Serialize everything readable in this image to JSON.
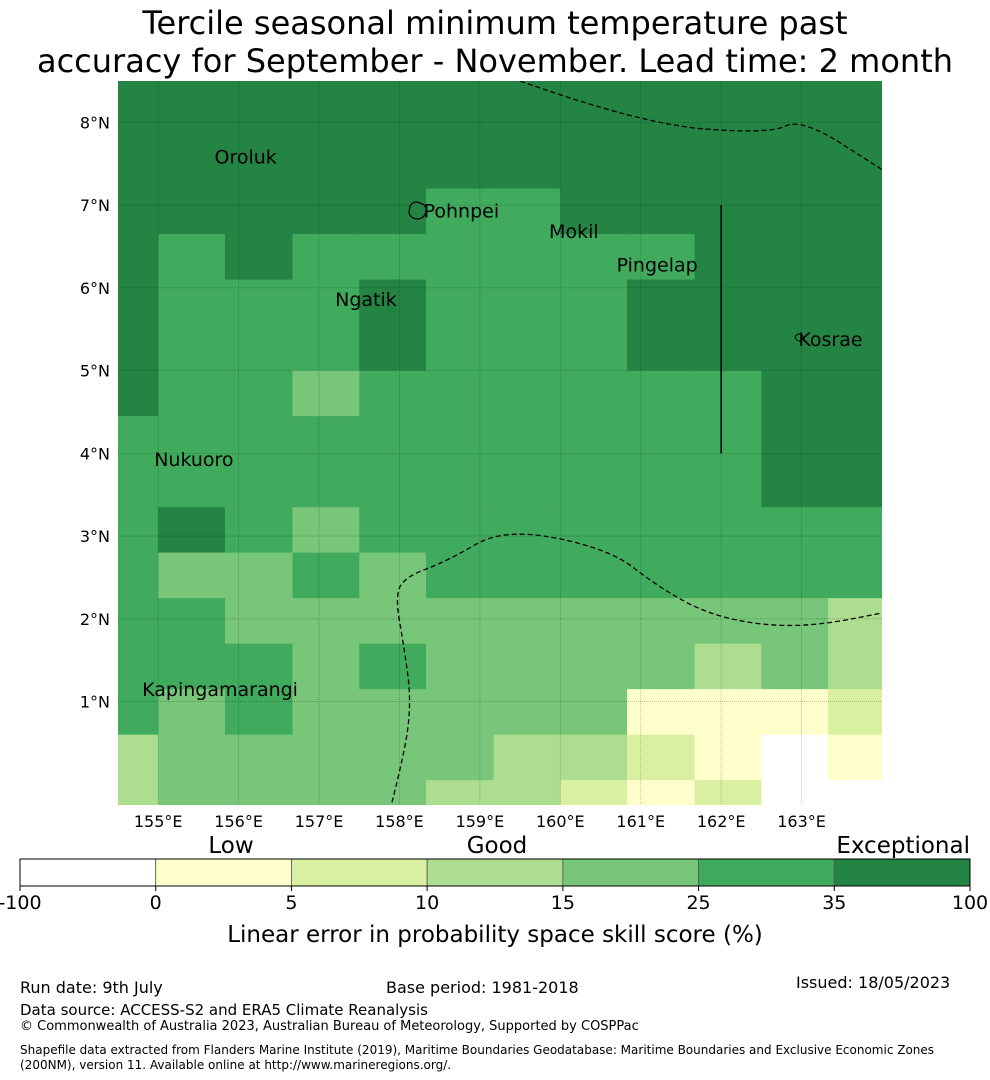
{
  "title_line1": "Tercile seasonal minimum temperature past",
  "title_line2": "accuracy for September - November. Lead time: 2 month",
  "map": {
    "lon_range": [
      154.5,
      164.0
    ],
    "lat_range": [
      -0.25,
      8.5
    ],
    "lon_ticks": [
      155,
      156,
      157,
      158,
      159,
      160,
      161,
      162,
      163
    ],
    "lon_tick_labels": [
      "155°E",
      "156°E",
      "157°E",
      "158°E",
      "159°E",
      "160°E",
      "161°E",
      "162°E",
      "163°E"
    ],
    "lat_ticks": [
      1,
      2,
      3,
      4,
      5,
      6,
      7,
      8
    ],
    "lat_tick_labels": [
      "1°N",
      "2°N",
      "3°N",
      "4°N",
      "5°N",
      "6°N",
      "7°N",
      "8°N"
    ],
    "cell_lon_edges": [
      154.5,
      155.0,
      155.83,
      156.67,
      157.5,
      158.33,
      159.17,
      160.0,
      160.83,
      161.67,
      162.5,
      163.33,
      164.0
    ],
    "cell_lat_edges": [
      8.5,
      7.75,
      7.2,
      6.65,
      6.1,
      5.55,
      5.0,
      4.45,
      3.9,
      3.35,
      2.8,
      2.25,
      1.7,
      1.15,
      0.6,
      0.05,
      -0.5
    ],
    "skill_class_grid": [
      [
        6,
        6,
        6,
        6,
        6,
        6,
        6,
        6,
        6,
        6,
        6,
        6
      ],
      [
        6,
        6,
        6,
        6,
        6,
        6,
        6,
        6,
        6,
        6,
        6,
        6
      ],
      [
        6,
        6,
        6,
        6,
        6,
        5,
        5,
        6,
        6,
        6,
        6,
        6
      ],
      [
        6,
        5,
        6,
        5,
        5,
        5,
        5,
        5,
        5,
        6,
        6,
        6
      ],
      [
        6,
        5,
        5,
        5,
        6,
        5,
        5,
        5,
        6,
        6,
        6,
        6
      ],
      [
        6,
        5,
        5,
        5,
        6,
        5,
        5,
        5,
        6,
        6,
        6,
        6
      ],
      [
        6,
        5,
        5,
        4,
        5,
        5,
        5,
        5,
        5,
        5,
        6,
        6
      ],
      [
        5,
        5,
        5,
        5,
        5,
        5,
        5,
        5,
        5,
        5,
        6,
        6
      ],
      [
        5,
        5,
        5,
        5,
        5,
        5,
        5,
        5,
        5,
        5,
        6,
        6
      ],
      [
        5,
        6,
        5,
        4,
        5,
        5,
        5,
        5,
        5,
        5,
        5,
        5
      ],
      [
        5,
        4,
        4,
        5,
        4,
        5,
        5,
        5,
        5,
        5,
        5,
        5
      ],
      [
        5,
        5,
        4,
        4,
        4,
        4,
        4,
        4,
        4,
        4,
        4,
        3
      ],
      [
        5,
        5,
        5,
        4,
        5,
        4,
        4,
        4,
        4,
        3,
        4,
        3
      ],
      [
        5,
        4,
        5,
        4,
        4,
        4,
        4,
        4,
        1,
        1,
        1,
        2
      ],
      [
        3,
        4,
        4,
        4,
        4,
        4,
        3,
        3,
        2,
        1,
        0,
        1
      ],
      [
        3,
        4,
        4,
        4,
        4,
        3,
        3,
        2,
        1,
        2,
        0,
        0
      ],
      [
        4,
        4,
        5,
        5,
        4,
        3,
        2,
        2,
        2,
        2,
        1,
        -1
      ]
    ],
    "places": [
      {
        "name": "Oroluk",
        "lon": 155.7,
        "lat": 7.5
      },
      {
        "name": "Pohnpei",
        "lon": 158.3,
        "lat": 6.85
      },
      {
        "name": "Mokil",
        "lon": 159.86,
        "lat": 6.6
      },
      {
        "name": "Pingelap",
        "lon": 160.7,
        "lat": 6.2
      },
      {
        "name": "Ngatik",
        "lon": 157.2,
        "lat": 5.78
      },
      {
        "name": "Kosrae",
        "lon": 162.96,
        "lat": 5.3
      },
      {
        "name": "Nukuoro",
        "lon": 154.95,
        "lat": 3.85
      },
      {
        "name": "Kapingamarangi",
        "lon": 154.8,
        "lat": 1.07
      }
    ],
    "boundaries": [
      [
        [
          159.5,
          8.5
        ],
        [
          161.0,
          7.98
        ],
        [
          162.6,
          7.86
        ],
        [
          163.0,
          8.05
        ],
        [
          164.0,
          7.43
        ]
      ],
      [
        [
          157.83,
          -0.5
        ],
        [
          158.05,
          0.3
        ],
        [
          158.15,
          1.0
        ],
        [
          158.05,
          1.7
        ],
        [
          157.95,
          2.25
        ],
        [
          158.05,
          2.5
        ],
        [
          158.6,
          2.7
        ],
        [
          159.3,
          3.1
        ],
        [
          160.6,
          2.85
        ],
        [
          161.2,
          2.4
        ],
        [
          161.8,
          2.07
        ],
        [
          162.5,
          1.92
        ],
        [
          163.2,
          1.92
        ],
        [
          164.0,
          2.07
        ]
      ]
    ],
    "solid_line": [
      [
        162.0,
        7.0
      ],
      [
        162.0,
        4.0
      ]
    ]
  },
  "colorbar": {
    "category_labels": [
      "Low",
      "Good",
      "Exceptional"
    ],
    "colors": [
      "#ffffff",
      "#ffffcc",
      "#d9f0a3",
      "#addd8e",
      "#78c679",
      "#41ab5d",
      "#238443"
    ],
    "bounds": [
      "-100",
      "0",
      "5",
      "10",
      "15",
      "25",
      "35",
      "100"
    ],
    "label": "Linear error in probability space skill score (%)"
  },
  "footer": {
    "run_date": "Run date: 9th July",
    "base_period": "Base period: 1981-2018",
    "issued": "Issued: 18/05/2023",
    "data_source": "Data source: ACCESS-S2 and ERA5 Climate Reanalysis",
    "copyright": "© Commonwealth of Australia 2023, Australian Bureau of Meteorology, Supported by COSPPac",
    "shapefile": "Shapefile data extracted from Flanders Marine Institute (2019), Maritime Boundaries Geodatabase: Maritime Boundaries and Exclusive Economic Zones (200NM), version 11. Available online at http://www.marineregions.org/."
  }
}
